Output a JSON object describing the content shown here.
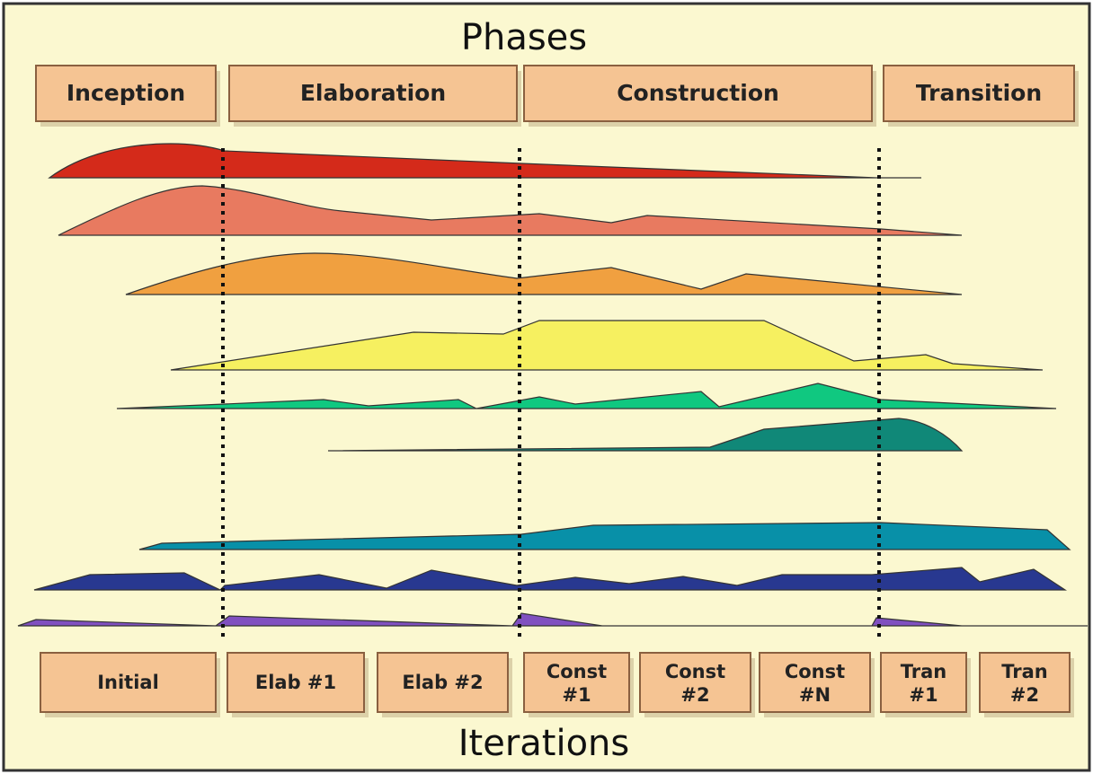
{
  "header": {
    "title": "Phases"
  },
  "phases": [
    "Inception",
    "Elaboration",
    "Construction",
    "Transition"
  ],
  "iterations": [
    [
      "Initial"
    ],
    [
      "Elab #1"
    ],
    [
      "Elab #2"
    ],
    [
      "Const",
      "#1"
    ],
    [
      "Const",
      "#2"
    ],
    [
      "Const",
      "#N"
    ],
    [
      "Tran",
      "#1"
    ],
    [
      "Tran",
      "#2"
    ]
  ],
  "footer": {
    "title": "Iterations"
  }
}
